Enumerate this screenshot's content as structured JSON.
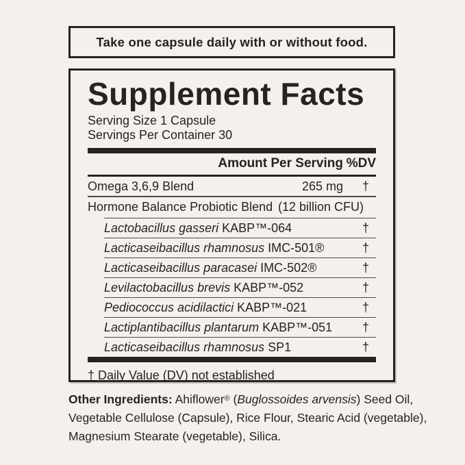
{
  "colors": {
    "background": "#f4f1ec",
    "ink": "#262320",
    "rule_gray": "#4e4944"
  },
  "directions": {
    "text": "Take one capsule daily with or without food."
  },
  "facts": {
    "title": "Supplement Facts",
    "serving_size": "Serving Size 1 Capsule",
    "servings_per_container": "Servings Per Container 30",
    "columns": {
      "amount": "Amount Per Serving",
      "dv": "%DV"
    },
    "rows": [
      {
        "name": "Omega 3,6,9 Blend",
        "amount": "265 mg",
        "dv": "†"
      },
      {
        "name": "Hormone Balance Probiotic Blend",
        "amount": "(12 billion CFU)",
        "dv": ""
      }
    ],
    "strains": [
      {
        "italic": "Lactobacillus gasseri",
        "code": "KABP™-064",
        "dv": "†"
      },
      {
        "italic": "Lacticaseibacillus rhamnosus",
        "code": "IMC-501®",
        "dv": "†"
      },
      {
        "italic": "Lacticaseibacillus paracasei",
        "code": "IMC-502®",
        "dv": "†"
      },
      {
        "italic": "Levilactobacillus brevis",
        "code": "KABP™-052",
        "dv": "†"
      },
      {
        "italic": "Pediococcus acidilactici",
        "code": "KABP™-021",
        "dv": "†"
      },
      {
        "italic": "Lactiplantibacillus plantarum",
        "code": "KABP™-051",
        "dv": "†"
      },
      {
        "italic": "Lacticaseibacillus rhamnosus",
        "code": "SP1",
        "dv": "†"
      }
    ],
    "footnote": "† Daily Value (DV) not established"
  },
  "other_ingredients": {
    "label": "Other Ingredients:",
    "line1_reg1": " Ahiflower",
    "line1_sup": "®",
    "line1_reg2": " (",
    "line1_italic": "Buglossoides arvensis",
    "line1_reg3": ") Seed Oil,",
    "line2": "Vegetable Cellulose (Capsule), Rice Flour, Stearic Acid (vegetable),",
    "line3": "Magnesium Stearate (vegetable), Silica."
  }
}
